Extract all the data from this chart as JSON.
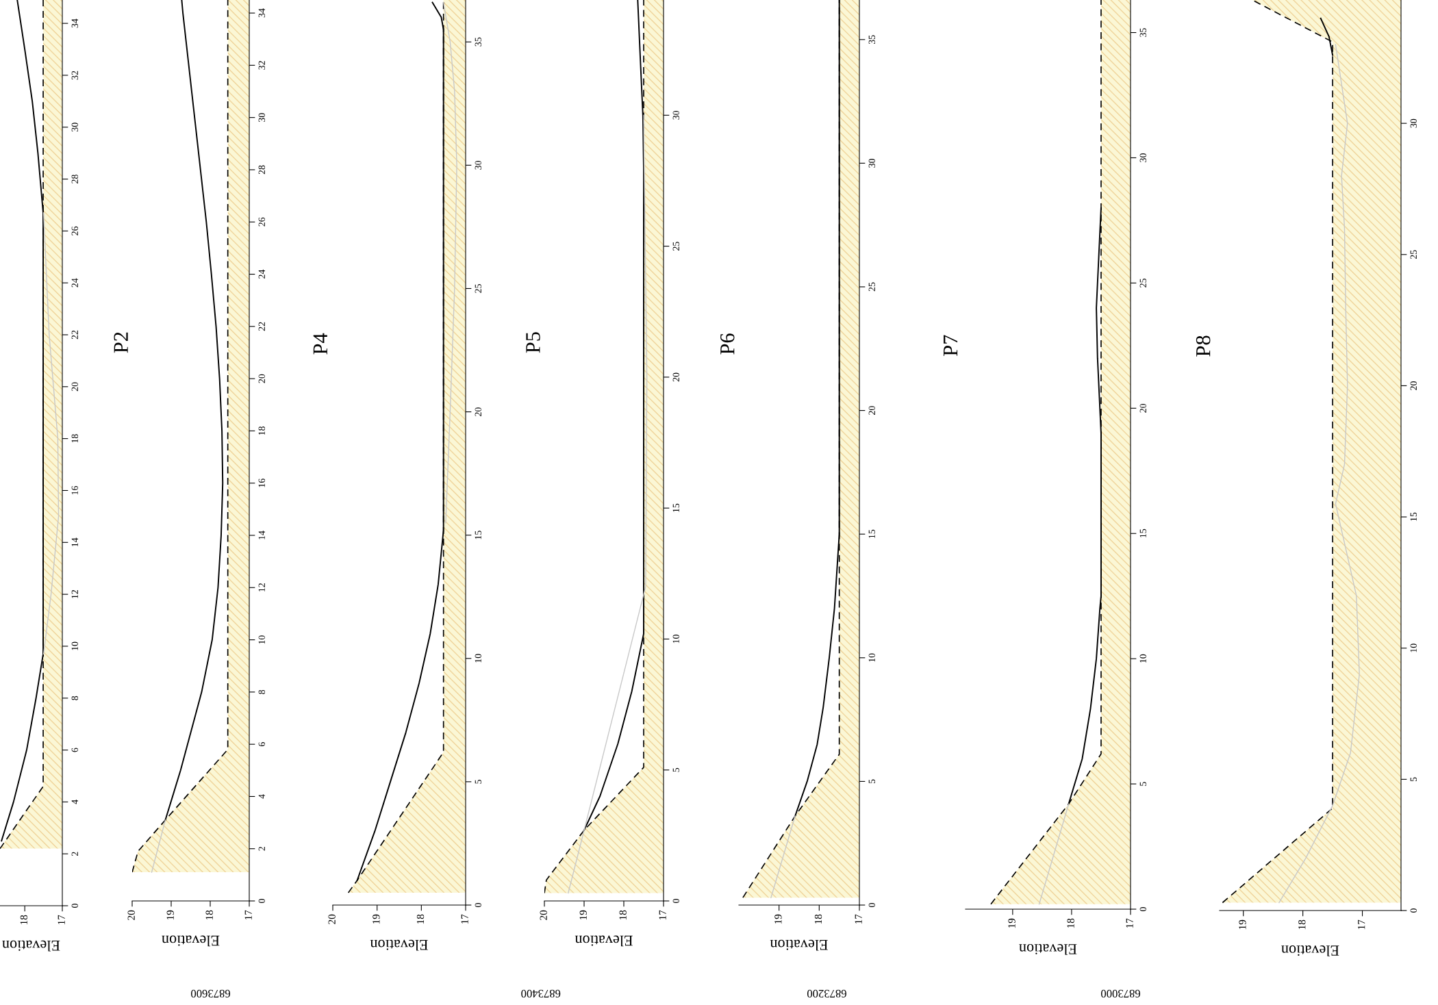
{
  "chart_data": [
    {
      "type": "line",
      "orientation": "horizontal",
      "xlabel": "Elevation",
      "xlim": [
        18.66,
        17
      ],
      "ylim": [
        0,
        34.9
      ],
      "yticks": [
        0,
        2,
        4,
        6,
        8,
        10,
        12,
        14,
        16,
        18,
        20,
        22,
        24,
        26,
        28,
        30,
        32,
        34
      ],
      "xticks": [
        17,
        18
      ],
      "grid": false,
      "series": [
        {
          "type": "area",
          "color": "#fbf7d5",
          "line_style": "dashed",
          "x": [
            2.2,
            4.6,
            34.9
          ],
          "values": [
            18.66,
            17.51,
            17.51
          ]
        },
        {
          "type": "line",
          "color": "#000000",
          "line_style": "solid",
          "x": [
            2.5,
            4,
            6,
            8,
            9.7,
            26.7,
            29,
            31,
            33,
            34.9
          ],
          "values": [
            18.62,
            18.3,
            17.95,
            17.7,
            17.51,
            17.51,
            17.65,
            17.8,
            18.0,
            18.2
          ]
        },
        {
          "type": "line",
          "color": "#c8c8c8",
          "line_style": "solid",
          "x": [
            9.7,
            12,
            15,
            18,
            22,
            26.7
          ],
          "values": [
            17.5,
            17.3,
            17.1,
            17.12,
            17.35,
            17.5
          ]
        }
      ]
    },
    {
      "type": "line",
      "orientation": "horizontal",
      "title": "P2",
      "xlabel": "Elevation",
      "annotations": [
        "6873600"
      ],
      "xlim": [
        20,
        17
      ],
      "ylim": [
        0,
        34.5
      ],
      "yticks": [
        0,
        2,
        4,
        6,
        8,
        10,
        12,
        14,
        16,
        18,
        20,
        22,
        24,
        26,
        28,
        30,
        32,
        34
      ],
      "xticks": [
        17,
        18,
        19,
        20
      ],
      "grid": false,
      "series": [
        {
          "type": "area",
          "color": "#fbf7d5",
          "line_style": "dashed",
          "x": [
            1.1,
            1.9,
            3.1,
            5.8,
            34.5
          ],
          "values": [
            20.0,
            19.85,
            19.15,
            17.55,
            17.55
          ]
        },
        {
          "type": "line",
          "color": "#000000",
          "line_style": "solid",
          "x": [
            3.1,
            5,
            8,
            10,
            12,
            14,
            16,
            18,
            20,
            22,
            24,
            26,
            28,
            30,
            32,
            34,
            34.5
          ],
          "values": [
            19.15,
            18.76,
            18.22,
            17.95,
            17.8,
            17.72,
            17.68,
            17.7,
            17.76,
            17.85,
            17.97,
            18.1,
            18.25,
            18.4,
            18.55,
            18.7,
            18.73
          ]
        },
        {
          "type": "line",
          "color": "#c8c8c8",
          "line_style": "solid",
          "x": [
            1.1,
            3.1
          ],
          "values": [
            19.5,
            19.15
          ]
        }
      ]
    },
    {
      "type": "line",
      "orientation": "horizontal",
      "title": "P4",
      "xlabel": "Elevation",
      "xlim": [
        20,
        17
      ],
      "ylim": [
        0,
        36.7
      ],
      "yticks": [
        0,
        5,
        10,
        15,
        20,
        25,
        30,
        35
      ],
      "xticks": [
        17,
        18,
        19,
        20
      ],
      "grid": false,
      "series": [
        {
          "type": "area",
          "color": "#fbf7d5",
          "line_style": "dashed",
          "x": [
            0.5,
            1.0,
            6.2,
            36.7
          ],
          "values": [
            19.65,
            19.45,
            17.5,
            17.5
          ]
        },
        {
          "type": "line",
          "color": "#000000",
          "line_style": "solid",
          "x": [
            1.0,
            3,
            5,
            7,
            9,
            11,
            13,
            15.2,
            35.5,
            36.0,
            36.6
          ],
          "values": [
            19.45,
            19.05,
            18.7,
            18.35,
            18.05,
            17.8,
            17.62,
            17.5,
            17.5,
            17.55,
            17.75
          ]
        },
        {
          "type": "line",
          "color": "#c8c8c8",
          "line_style": "solid",
          "x": [
            15.5,
            20,
            25,
            30,
            33,
            35,
            36.6
          ],
          "values": [
            17.45,
            17.35,
            17.25,
            17.2,
            17.25,
            17.35,
            17.5
          ]
        }
      ]
    },
    {
      "type": "line",
      "orientation": "horizontal",
      "title": "P5",
      "xlabel": "Elevation",
      "annotations": [
        "6873400"
      ],
      "xlim": [
        20,
        17
      ],
      "ylim": [
        0,
        34.4
      ],
      "yticks": [
        0,
        5,
        10,
        15,
        20,
        25,
        30
      ],
      "xticks": [
        17,
        18,
        19,
        20
      ],
      "grid": false,
      "series": [
        {
          "type": "area",
          "color": "#fbf7d5",
          "line_style": "dashed",
          "x": [
            0.3,
            0.8,
            2.7,
            5.1,
            34.4
          ],
          "values": [
            20.0,
            19.95,
            19.0,
            17.5,
            17.5
          ]
        },
        {
          "type": "line",
          "color": "#000000",
          "line_style": "solid",
          "x": [
            2.7,
            4,
            6,
            8,
            10.2,
            28,
            30,
            32,
            34.4
          ],
          "values": [
            19.0,
            18.6,
            18.15,
            17.8,
            17.5,
            17.5,
            17.52,
            17.58,
            17.65
          ]
        },
        {
          "type": "line",
          "color": "#c8c8c8",
          "line_style": "solid",
          "x": [
            0.3,
            2.7,
            12,
            20,
            30
          ],
          "values": [
            19.4,
            19.0,
            17.45,
            17.42,
            17.5
          ]
        }
      ]
    },
    {
      "type": "line",
      "orientation": "horizontal",
      "title": "P6",
      "xlabel": "Elevation",
      "annotations": [
        "6873200"
      ],
      "xlim": [
        20,
        17
      ],
      "ylim": [
        0,
        36.6
      ],
      "yticks": [
        0,
        5,
        10,
        15,
        20,
        25,
        30,
        35
      ],
      "xticks": [
        17,
        18,
        19
      ],
      "grid": false,
      "series": [
        {
          "type": "area",
          "color": "#fbf7d5",
          "line_style": "dashed",
          "x": [
            0.3,
            3.6,
            6.1,
            36.6
          ],
          "values": [
            19.9,
            18.6,
            17.5,
            17.5
          ]
        },
        {
          "type": "line",
          "color": "#000000",
          "line_style": "solid",
          "x": [
            3.6,
            5,
            6.5,
            8,
            10,
            12,
            15,
            36.6
          ],
          "values": [
            18.6,
            18.3,
            18.05,
            17.9,
            17.75,
            17.62,
            17.5,
            17.5
          ]
        },
        {
          "type": "line",
          "color": "#c8c8c8",
          "line_style": "solid",
          "x": [
            0.3,
            3.6
          ],
          "values": [
            19.2,
            18.6
          ]
        }
      ]
    },
    {
      "type": "line",
      "orientation": "horizontal",
      "title": "P7",
      "xlabel": "Elevation",
      "annotations": [
        "6873000"
      ],
      "xlim": [
        19.8,
        17
      ],
      "ylim": [
        0,
        36.3
      ],
      "yticks": [
        0,
        5,
        10,
        15,
        20,
        25,
        30,
        35
      ],
      "xticks": [
        17,
        18,
        19
      ],
      "grid": false,
      "series": [
        {
          "type": "area",
          "color": "#fbf7d5",
          "line_style": "dashed",
          "x": [
            0.2,
            4.2,
            6.2,
            36.3
          ],
          "values": [
            19.37,
            18.05,
            17.5,
            17.5
          ]
        },
        {
          "type": "line",
          "color": "#000000",
          "line_style": "solid",
          "x": [
            4.2,
            6,
            8,
            10,
            12,
            12.5,
            19,
            20,
            22,
            24,
            26,
            28
          ],
          "values": [
            18.05,
            17.82,
            17.68,
            17.58,
            17.52,
            17.5,
            17.5,
            17.52,
            17.56,
            17.58,
            17.54,
            17.5
          ]
        },
        {
          "type": "line",
          "color": "#c8c8c8",
          "line_style": "solid",
          "x": [
            0.2,
            4.2
          ],
          "values": [
            18.55,
            18.05
          ]
        }
      ]
    },
    {
      "type": "line",
      "orientation": "horizontal",
      "title": "P8",
      "xlabel": "Elevation",
      "xlim": [
        19.4,
        16.35
      ],
      "ylim": [
        0,
        34.7
      ],
      "yticks": [
        0,
        5,
        10,
        15,
        20,
        25,
        30
      ],
      "xticks": [
        17,
        18,
        19
      ],
      "grid": false,
      "series": [
        {
          "type": "area",
          "color": "#fbf7d5",
          "line_style": "dashed",
          "x": [
            0.3,
            3.9,
            33.1,
            34.7
          ],
          "values": [
            19.35,
            17.5,
            17.5,
            18.85
          ]
        },
        {
          "type": "line",
          "color": "#000000",
          "line_style": "solid",
          "x": [
            32.6,
            33.3,
            34.0
          ],
          "values": [
            17.5,
            17.56,
            17.7
          ]
        },
        {
          "type": "line",
          "color": "#c8c8c8",
          "line_style": "solid",
          "x": [
            0.3,
            2,
            4,
            6,
            9,
            12,
            14,
            15.5,
            17,
            20,
            23,
            26,
            28,
            30,
            33
          ],
          "values": [
            18.4,
            17.95,
            17.5,
            17.2,
            17.05,
            17.1,
            17.3,
            17.45,
            17.3,
            17.25,
            17.28,
            17.3,
            17.35,
            17.25,
            17.45
          ]
        }
      ]
    }
  ]
}
